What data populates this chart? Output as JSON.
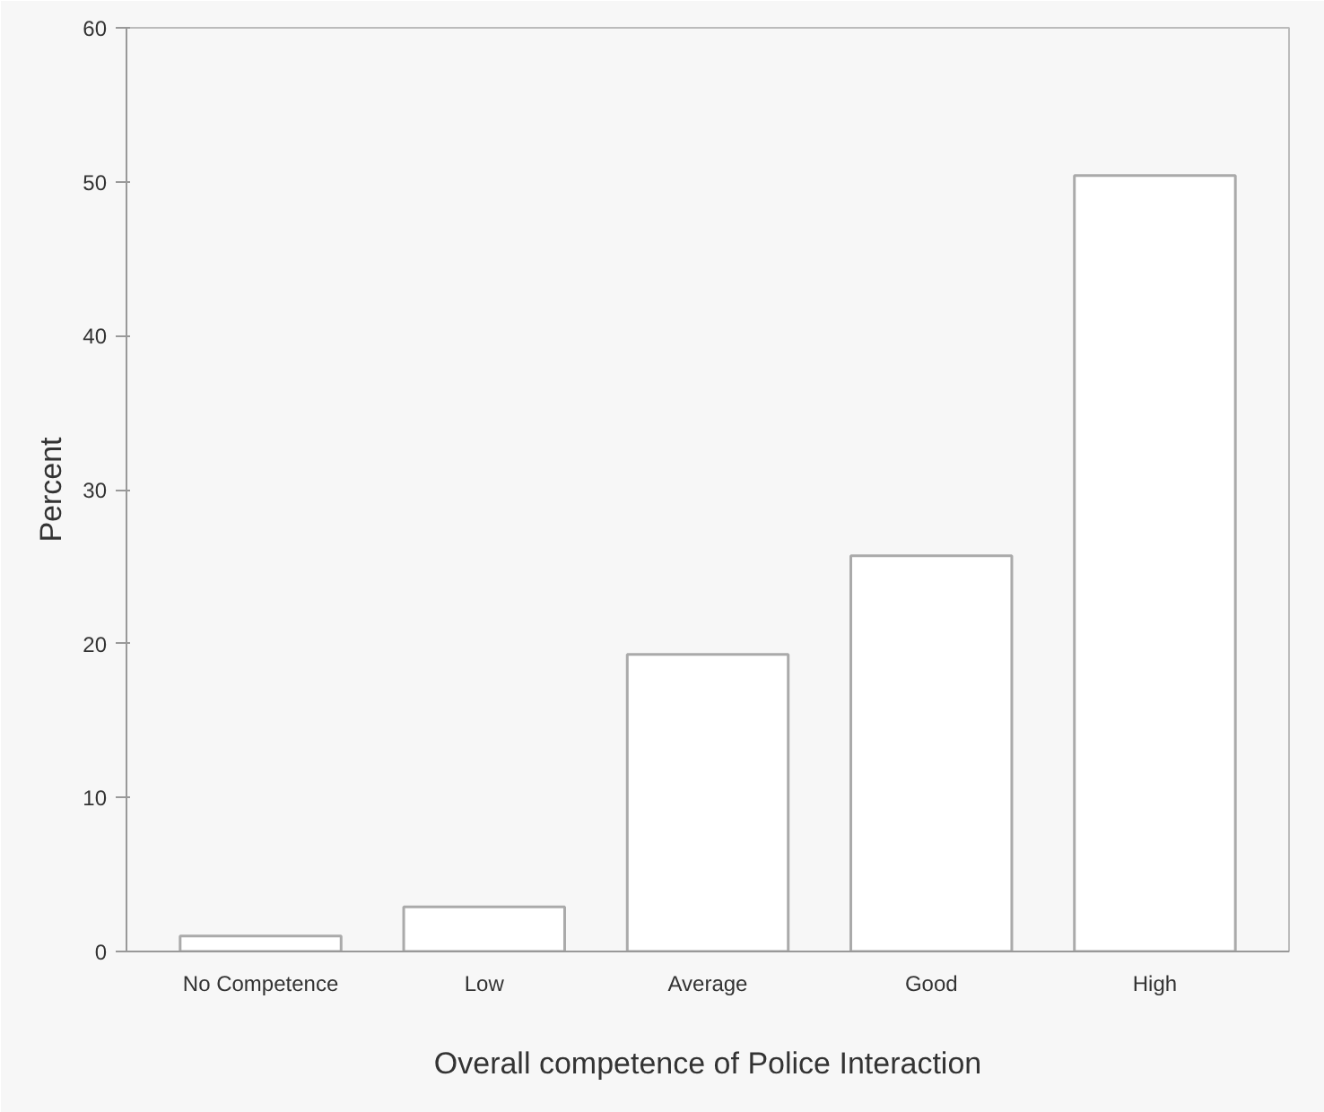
{
  "chart_data": {
    "type": "bar",
    "xlabel": "Overall competence of Police Interaction",
    "ylabel": "Percent",
    "categories": [
      "No Competence",
      "Low",
      "Average",
      "Good",
      "High"
    ],
    "values": [
      1.0,
      2.9,
      19.3,
      25.7,
      50.4
    ],
    "color": "#ffffff",
    "ylim": [
      0,
      60
    ],
    "yticks": [
      0,
      10,
      20,
      30,
      40,
      50,
      60
    ],
    "grid": false
  }
}
